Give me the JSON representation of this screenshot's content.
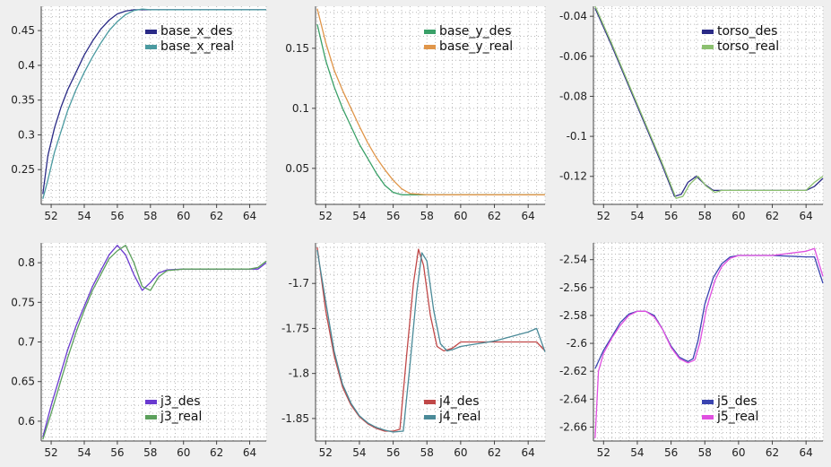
{
  "chart_data": [
    {
      "type": "line",
      "xlim": [
        51.4,
        65
      ],
      "ylim": [
        0.2,
        0.485
      ],
      "x_ticks": [
        52,
        54,
        56,
        58,
        60,
        62,
        64
      ],
      "y_ticks": [
        0.25,
        0.3,
        0.35,
        0.4,
        0.45
      ],
      "grid": true,
      "legend_position": "top-right",
      "series": [
        {
          "name": "base_x_des",
          "color": "#2a2a86",
          "x": [
            51.5,
            51.8,
            52.2,
            52.6,
            53,
            53.5,
            54,
            54.5,
            55,
            55.5,
            56,
            56.5,
            57,
            57.5,
            58,
            60,
            65
          ],
          "y": [
            0.215,
            0.27,
            0.31,
            0.34,
            0.365,
            0.39,
            0.415,
            0.435,
            0.452,
            0.465,
            0.474,
            0.478,
            0.48,
            0.48,
            0.48,
            0.48,
            0.48
          ]
        },
        {
          "name": "base_x_real",
          "color": "#4a9aa0",
          "x": [
            51.5,
            51.8,
            52.2,
            52.6,
            53,
            53.5,
            54,
            54.5,
            55,
            55.5,
            56,
            56.5,
            57,
            57.5,
            58,
            60,
            65
          ],
          "y": [
            0.208,
            0.235,
            0.275,
            0.305,
            0.335,
            0.365,
            0.39,
            0.412,
            0.432,
            0.45,
            0.463,
            0.473,
            0.479,
            0.481,
            0.48,
            0.48,
            0.48
          ]
        }
      ]
    },
    {
      "type": "line",
      "xlim": [
        51.4,
        65
      ],
      "ylim": [
        0.02,
        0.185
      ],
      "x_ticks": [
        52,
        54,
        56,
        58,
        60,
        62,
        64
      ],
      "y_ticks": [
        0.05,
        0.1,
        0.15
      ],
      "grid": true,
      "legend_position": "top-right",
      "series": [
        {
          "name": "base_y_des",
          "color": "#3aa068",
          "x": [
            51.5,
            52,
            52.5,
            53,
            53.5,
            54,
            54.5,
            55,
            55.5,
            56,
            56.5,
            57,
            58,
            60,
            65
          ],
          "y": [
            0.17,
            0.14,
            0.118,
            0.1,
            0.085,
            0.07,
            0.058,
            0.046,
            0.036,
            0.03,
            0.028,
            0.028,
            0.028,
            0.028,
            0.028
          ]
        },
        {
          "name": "base_y_real",
          "color": "#e0964a",
          "x": [
            51.5,
            52,
            52.5,
            53,
            53.5,
            54,
            54.5,
            55,
            55.5,
            56,
            56.5,
            57,
            58,
            60,
            65
          ],
          "y": [
            0.183,
            0.155,
            0.132,
            0.115,
            0.1,
            0.085,
            0.071,
            0.059,
            0.049,
            0.04,
            0.033,
            0.029,
            0.028,
            0.028,
            0.028
          ]
        }
      ]
    },
    {
      "type": "line",
      "xlim": [
        51.4,
        65
      ],
      "ylim": [
        -0.134,
        -0.035
      ],
      "x_ticks": [
        52,
        54,
        56,
        58,
        60,
        62,
        64
      ],
      "y_ticks": [
        -0.04,
        -0.06,
        -0.08,
        -0.1,
        -0.12
      ],
      "grid": true,
      "legend_position": "top-right",
      "series": [
        {
          "name": "torso_des",
          "color": "#2a2a86",
          "x": [
            51.5,
            52.5,
            53.5,
            54.5,
            55.5,
            56.2,
            56.6,
            57,
            57.5,
            58,
            58.5,
            59,
            60,
            62,
            64,
            64.5,
            65
          ],
          "y": [
            -0.036,
            -0.055,
            -0.075,
            -0.095,
            -0.115,
            -0.13,
            -0.129,
            -0.123,
            -0.12,
            -0.124,
            -0.127,
            -0.127,
            -0.127,
            -0.127,
            -0.127,
            -0.125,
            -0.121
          ]
        },
        {
          "name": "torso_real",
          "color": "#8cc070",
          "x": [
            51.5,
            52.5,
            53.5,
            54.5,
            55.5,
            56.3,
            56.7,
            57.1,
            57.6,
            58.1,
            58.6,
            59,
            60,
            62,
            64,
            64.5,
            65
          ],
          "y": [
            -0.035,
            -0.054,
            -0.074,
            -0.094,
            -0.114,
            -0.131,
            -0.13,
            -0.124,
            -0.12,
            -0.125,
            -0.128,
            -0.127,
            -0.127,
            -0.127,
            -0.127,
            -0.123,
            -0.12
          ]
        }
      ]
    },
    {
      "type": "line",
      "xlim": [
        51.4,
        65
      ],
      "ylim": [
        0.575,
        0.825
      ],
      "x_ticks": [
        52,
        54,
        56,
        58,
        60,
        62,
        64
      ],
      "y_ticks": [
        0.6,
        0.65,
        0.7,
        0.75,
        0.8
      ],
      "grid": true,
      "legend_position": "bottom-right",
      "series": [
        {
          "name": "j3_des",
          "color": "#6a3ad0",
          "x": [
            51.5,
            52,
            52.5,
            53,
            53.5,
            54,
            54.5,
            55,
            55.5,
            56,
            56.5,
            57,
            57.5,
            58,
            58.5,
            59,
            60,
            62,
            64,
            64.5,
            65
          ],
          "y": [
            0.58,
            0.62,
            0.655,
            0.69,
            0.72,
            0.745,
            0.77,
            0.79,
            0.81,
            0.822,
            0.81,
            0.785,
            0.765,
            0.775,
            0.787,
            0.791,
            0.792,
            0.792,
            0.792,
            0.792,
            0.8
          ]
        },
        {
          "name": "j3_real",
          "color": "#5ca05c",
          "x": [
            51.5,
            52,
            52.5,
            53,
            53.5,
            54,
            54.5,
            55,
            55.5,
            56,
            56.5,
            57,
            57.5,
            58,
            58.5,
            59,
            60,
            62,
            64,
            64.5,
            65
          ],
          "y": [
            0.577,
            0.61,
            0.645,
            0.68,
            0.712,
            0.74,
            0.765,
            0.785,
            0.805,
            0.815,
            0.822,
            0.8,
            0.77,
            0.765,
            0.782,
            0.79,
            0.792,
            0.792,
            0.792,
            0.794,
            0.802
          ]
        }
      ]
    },
    {
      "type": "line",
      "xlim": [
        51.4,
        65
      ],
      "ylim": [
        -1.875,
        -1.655
      ],
      "x_ticks": [
        52,
        54,
        56,
        58,
        60,
        62,
        64
      ],
      "y_ticks": [
        -1.7,
        -1.75,
        -1.8,
        -1.85
      ],
      "grid": true,
      "legend_position": "bottom-right",
      "series": [
        {
          "name": "j4_des",
          "color": "#c04848",
          "x": [
            51.5,
            52,
            52.5,
            53,
            53.5,
            54,
            54.5,
            55,
            55.5,
            56,
            56.4,
            56.8,
            57.2,
            57.5,
            57.8,
            58.2,
            58.6,
            59,
            59.5,
            60,
            62,
            64,
            64.5,
            65
          ],
          "y": [
            -1.66,
            -1.73,
            -1.78,
            -1.815,
            -1.835,
            -1.848,
            -1.856,
            -1.861,
            -1.864,
            -1.864,
            -1.862,
            -1.78,
            -1.7,
            -1.662,
            -1.68,
            -1.735,
            -1.77,
            -1.775,
            -1.772,
            -1.765,
            -1.765,
            -1.765,
            -1.765,
            -1.775
          ]
        },
        {
          "name": "j4_real",
          "color": "#4a8a98",
          "x": [
            51.5,
            52,
            52.5,
            53,
            53.5,
            54,
            54.5,
            55,
            55.5,
            56,
            56.6,
            57,
            57.4,
            57.7,
            58,
            58.4,
            58.8,
            59.2,
            59.6,
            60,
            62,
            64,
            64.5,
            65
          ],
          "y": [
            -1.663,
            -1.72,
            -1.775,
            -1.812,
            -1.833,
            -1.847,
            -1.855,
            -1.86,
            -1.863,
            -1.865,
            -1.864,
            -1.79,
            -1.71,
            -1.666,
            -1.675,
            -1.73,
            -1.767,
            -1.775,
            -1.773,
            -1.77,
            -1.764,
            -1.754,
            -1.75,
            -1.776
          ]
        }
      ]
    },
    {
      "type": "line",
      "xlim": [
        51.4,
        65
      ],
      "ylim": [
        -2.67,
        -2.528
      ],
      "x_ticks": [
        52,
        54,
        56,
        58,
        60,
        62,
        64
      ],
      "y_ticks": [
        -2.54,
        -2.56,
        -2.58,
        -2.6,
        -2.62,
        -2.64,
        -2.66
      ],
      "grid": true,
      "legend_position": "bottom-right",
      "series": [
        {
          "name": "j5_des",
          "color": "#3a44b0",
          "x": [
            51.5,
            52,
            52.5,
            53,
            53.5,
            54,
            54.5,
            55,
            55.5,
            56,
            56.5,
            57,
            57.3,
            57.6,
            58,
            58.5,
            59,
            59.5,
            60,
            62,
            64,
            64.5,
            65
          ],
          "y": [
            -2.618,
            -2.605,
            -2.595,
            -2.585,
            -2.579,
            -2.577,
            -2.577,
            -2.58,
            -2.59,
            -2.602,
            -2.61,
            -2.613,
            -2.611,
            -2.598,
            -2.572,
            -2.553,
            -2.543,
            -2.538,
            -2.537,
            -2.537,
            -2.538,
            -2.538,
            -2.557
          ]
        },
        {
          "name": "j5_real",
          "color": "#e050e0",
          "x": [
            51.5,
            51.7,
            52,
            52.5,
            53,
            53.5,
            54,
            54.5,
            55,
            55.5,
            56,
            56.5,
            57,
            57.4,
            57.7,
            58.1,
            58.6,
            59,
            59.5,
            60,
            62,
            64,
            64.5,
            65
          ],
          "y": [
            -2.668,
            -2.62,
            -2.607,
            -2.596,
            -2.587,
            -2.58,
            -2.577,
            -2.577,
            -2.581,
            -2.59,
            -2.603,
            -2.611,
            -2.614,
            -2.612,
            -2.6,
            -2.575,
            -2.555,
            -2.545,
            -2.539,
            -2.537,
            -2.537,
            -2.534,
            -2.532,
            -2.552
          ]
        }
      ]
    }
  ]
}
